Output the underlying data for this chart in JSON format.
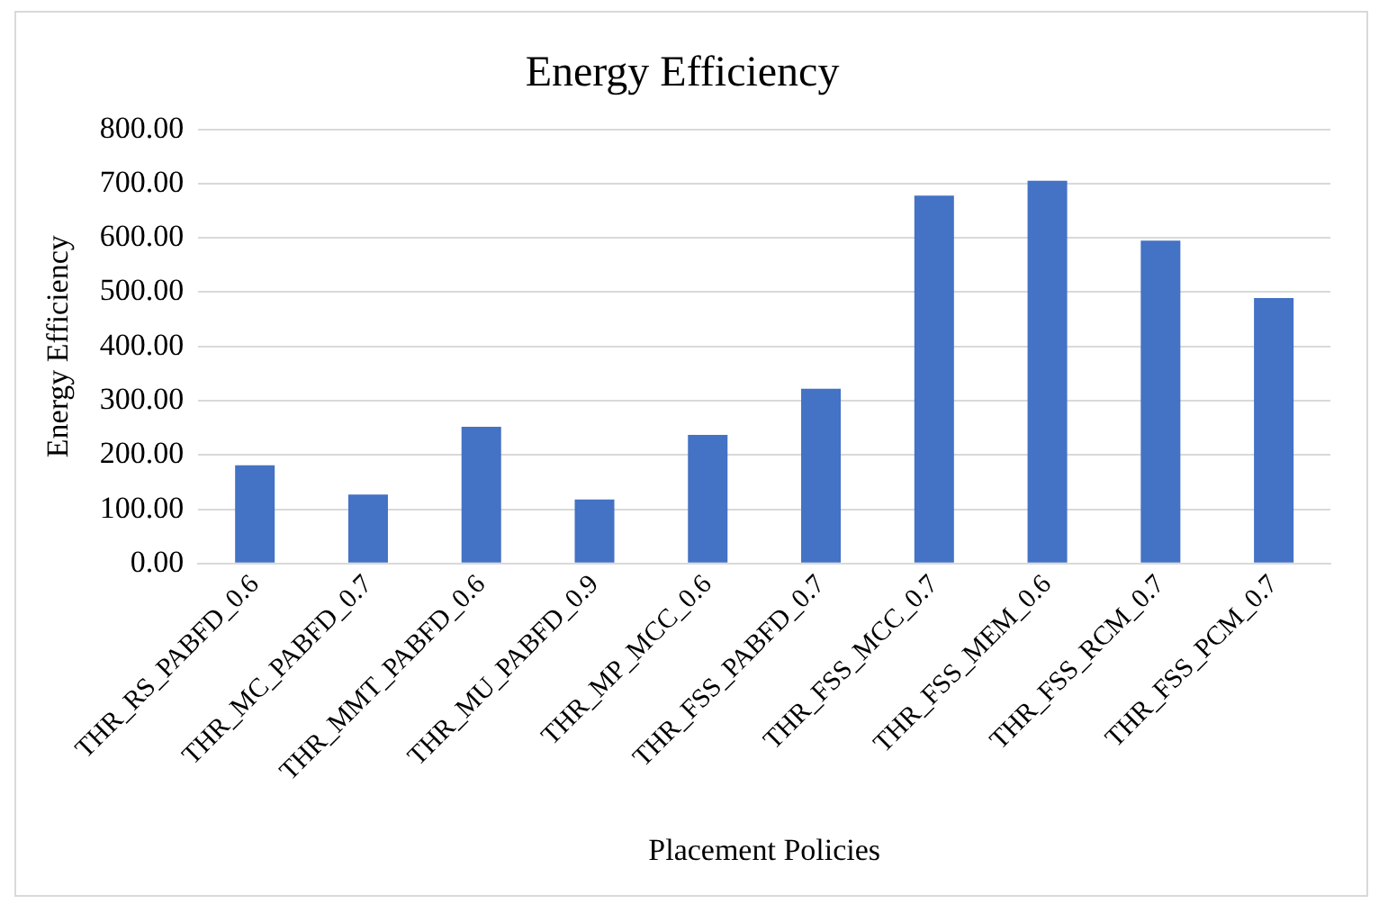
{
  "chart_data": {
    "type": "bar",
    "title": "Energy Efficiency",
    "xlabel": "Placement Policies",
    "ylabel": "Energy Efficiency",
    "categories": [
      "THR_RS_PABFD_0.6",
      "THR_MC_PABFD_0.7",
      "THR_MMT_PABFD_0.6",
      "THR_MU_PABFD_0.9",
      "THR_MP_MCC_0.6",
      "THR_FSS_PABFD_0.7",
      "THR_FSS_MCC_0.7",
      "THR_FSS_MEM_0.6",
      "THR_FSS_RCM_0.7",
      "THR_FSS_PCM_0.7"
    ],
    "values": [
      181,
      127,
      252,
      118,
      237,
      322,
      678,
      705,
      595,
      489
    ],
    "color": "#4472c4",
    "ylim": [
      0,
      800
    ],
    "yticks": [
      {
        "value": 0,
        "label": "0.00"
      },
      {
        "value": 100,
        "label": "100.00"
      },
      {
        "value": 200,
        "label": "200.00"
      },
      {
        "value": 300,
        "label": "300.00"
      },
      {
        "value": 400,
        "label": "400.00"
      },
      {
        "value": 500,
        "label": "500.00"
      },
      {
        "value": 600,
        "label": "600.00"
      },
      {
        "value": 700,
        "label": "700.00"
      },
      {
        "value": 800,
        "label": "800.00"
      }
    ],
    "grid": "y",
    "legend": false
  }
}
